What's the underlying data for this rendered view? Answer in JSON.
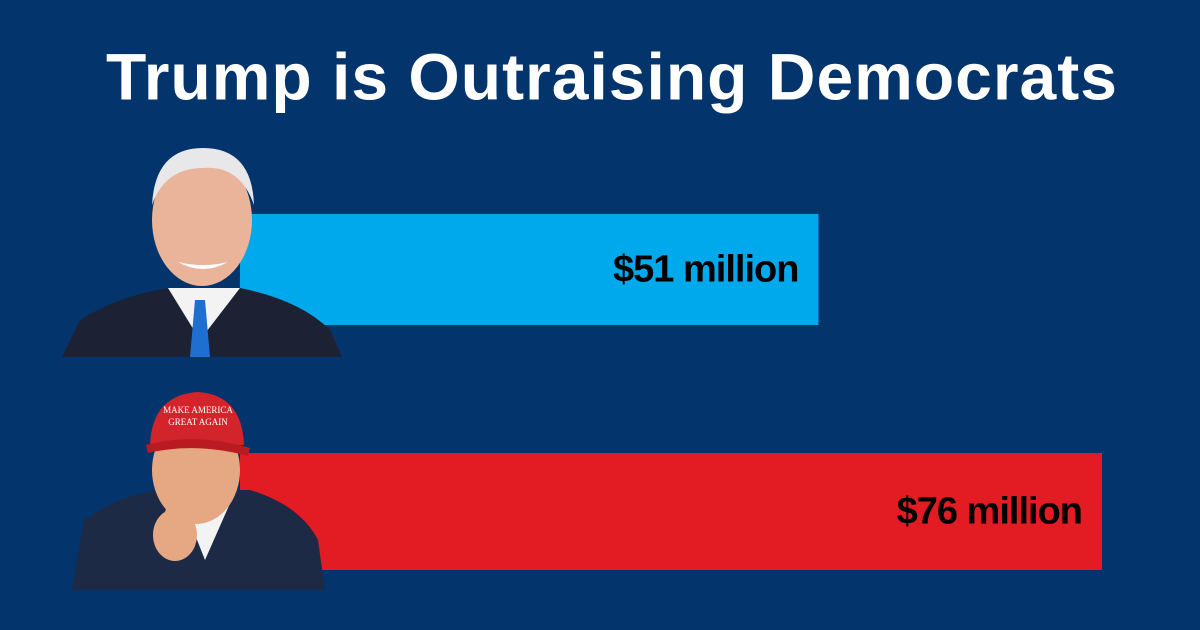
{
  "chart_data": {
    "type": "bar",
    "title": "Trump is Outraising Democrats",
    "categories": [
      null,
      null
    ],
    "values": [
      51,
      76
    ],
    "value_labels": [
      "$51 million",
      "$76 million"
    ],
    "colors": [
      "#00a9ec",
      "#e31b23"
    ]
  }
}
